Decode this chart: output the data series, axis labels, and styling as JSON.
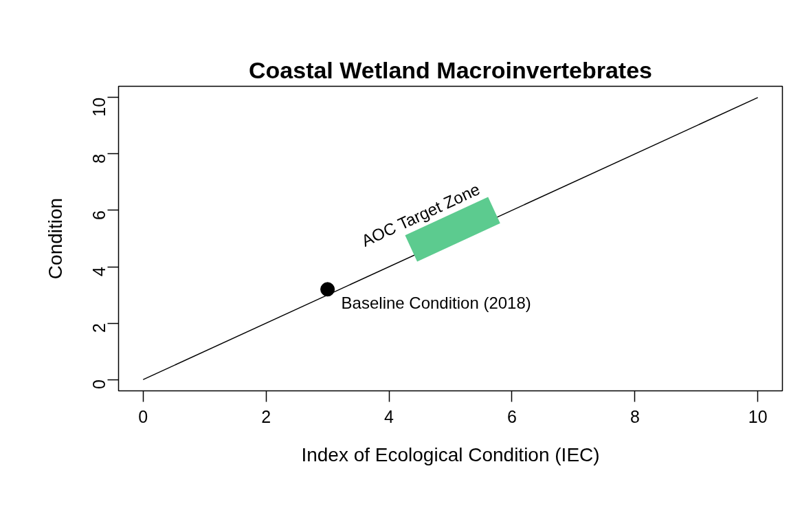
{
  "chart_data": {
    "type": "line",
    "title": "Coastal Wetland Macroinvertebrates",
    "xlabel": "Index of Ecological Condition (IEC)",
    "ylabel": "Condition",
    "series": [
      {
        "color": "#000000",
        "x": [
          0,
          10
        ],
        "values": [
          0,
          10
        ]
      },
      {
        "type": "line",
        "name": "AOC Target Zone",
        "color": "#5ccb8f",
        "x": [
          4.36,
          5.71
        ],
        "values": [
          4.65,
          6.01
        ]
      },
      {
        "type": "scatter",
        "name": "Baseline Condition (2018)",
        "color": "#000000",
        "marker": "circle",
        "x": [
          3
        ],
        "values": [
          3.2
        ]
      }
    ],
    "xlim": [
      -0.4,
      10.4
    ],
    "ylim": [
      -0.4,
      10.4
    ],
    "xticks": [
      0,
      2,
      4,
      6,
      8,
      10
    ],
    "yticks": [
      0,
      2,
      4,
      6,
      8,
      10
    ],
    "grid": false
  }
}
